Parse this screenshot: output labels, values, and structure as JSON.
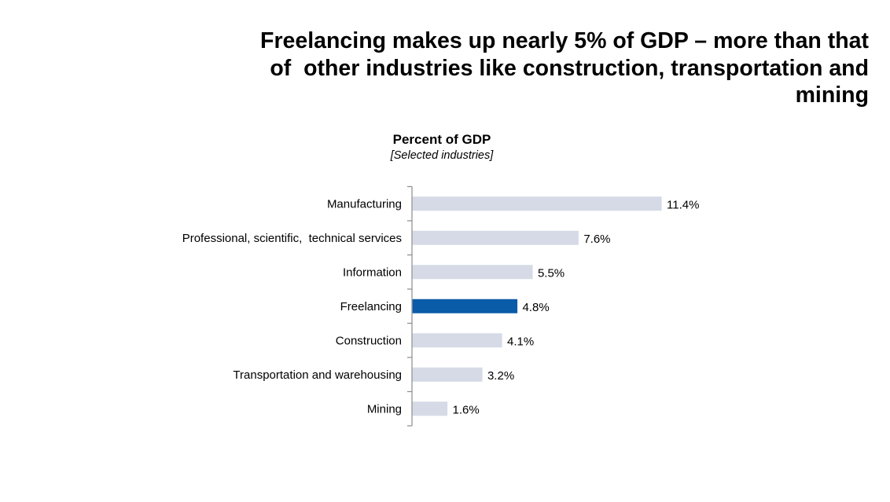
{
  "headline": "Freelancing makes up nearly 5% of GDP – more than that of  other industries like construction, transportation and mining",
  "headline_lines": [
    "Freelancing makes up nearly 5% of GDP – more than that",
    "of  other industries like construction, transportation and",
    "mining"
  ],
  "colors": {
    "bar_default": "#D5DAE6",
    "bar_highlight": "#0A5BA8",
    "axis": "#8C8C8C"
  },
  "chart_data": {
    "type": "bar",
    "orientation": "horizontal",
    "title": "Percent of GDP",
    "subtitle": "[Selected industries]",
    "xlabel": "",
    "ylabel": "",
    "xlim": [
      0,
      11.4
    ],
    "grid": false,
    "categories": [
      "Manufacturing",
      "Professional, scientific,  technical services",
      "Information",
      "Freelancing",
      "Construction",
      "Transportation and warehousing",
      "Mining"
    ],
    "values": [
      11.4,
      7.6,
      5.5,
      4.8,
      4.1,
      3.2,
      1.6
    ],
    "value_labels": [
      "11.4%",
      "7.6%",
      "5.5%",
      "4.8%",
      "4.1%",
      "3.2%",
      "1.6%"
    ],
    "highlight": "Freelancing",
    "unit": "%"
  }
}
